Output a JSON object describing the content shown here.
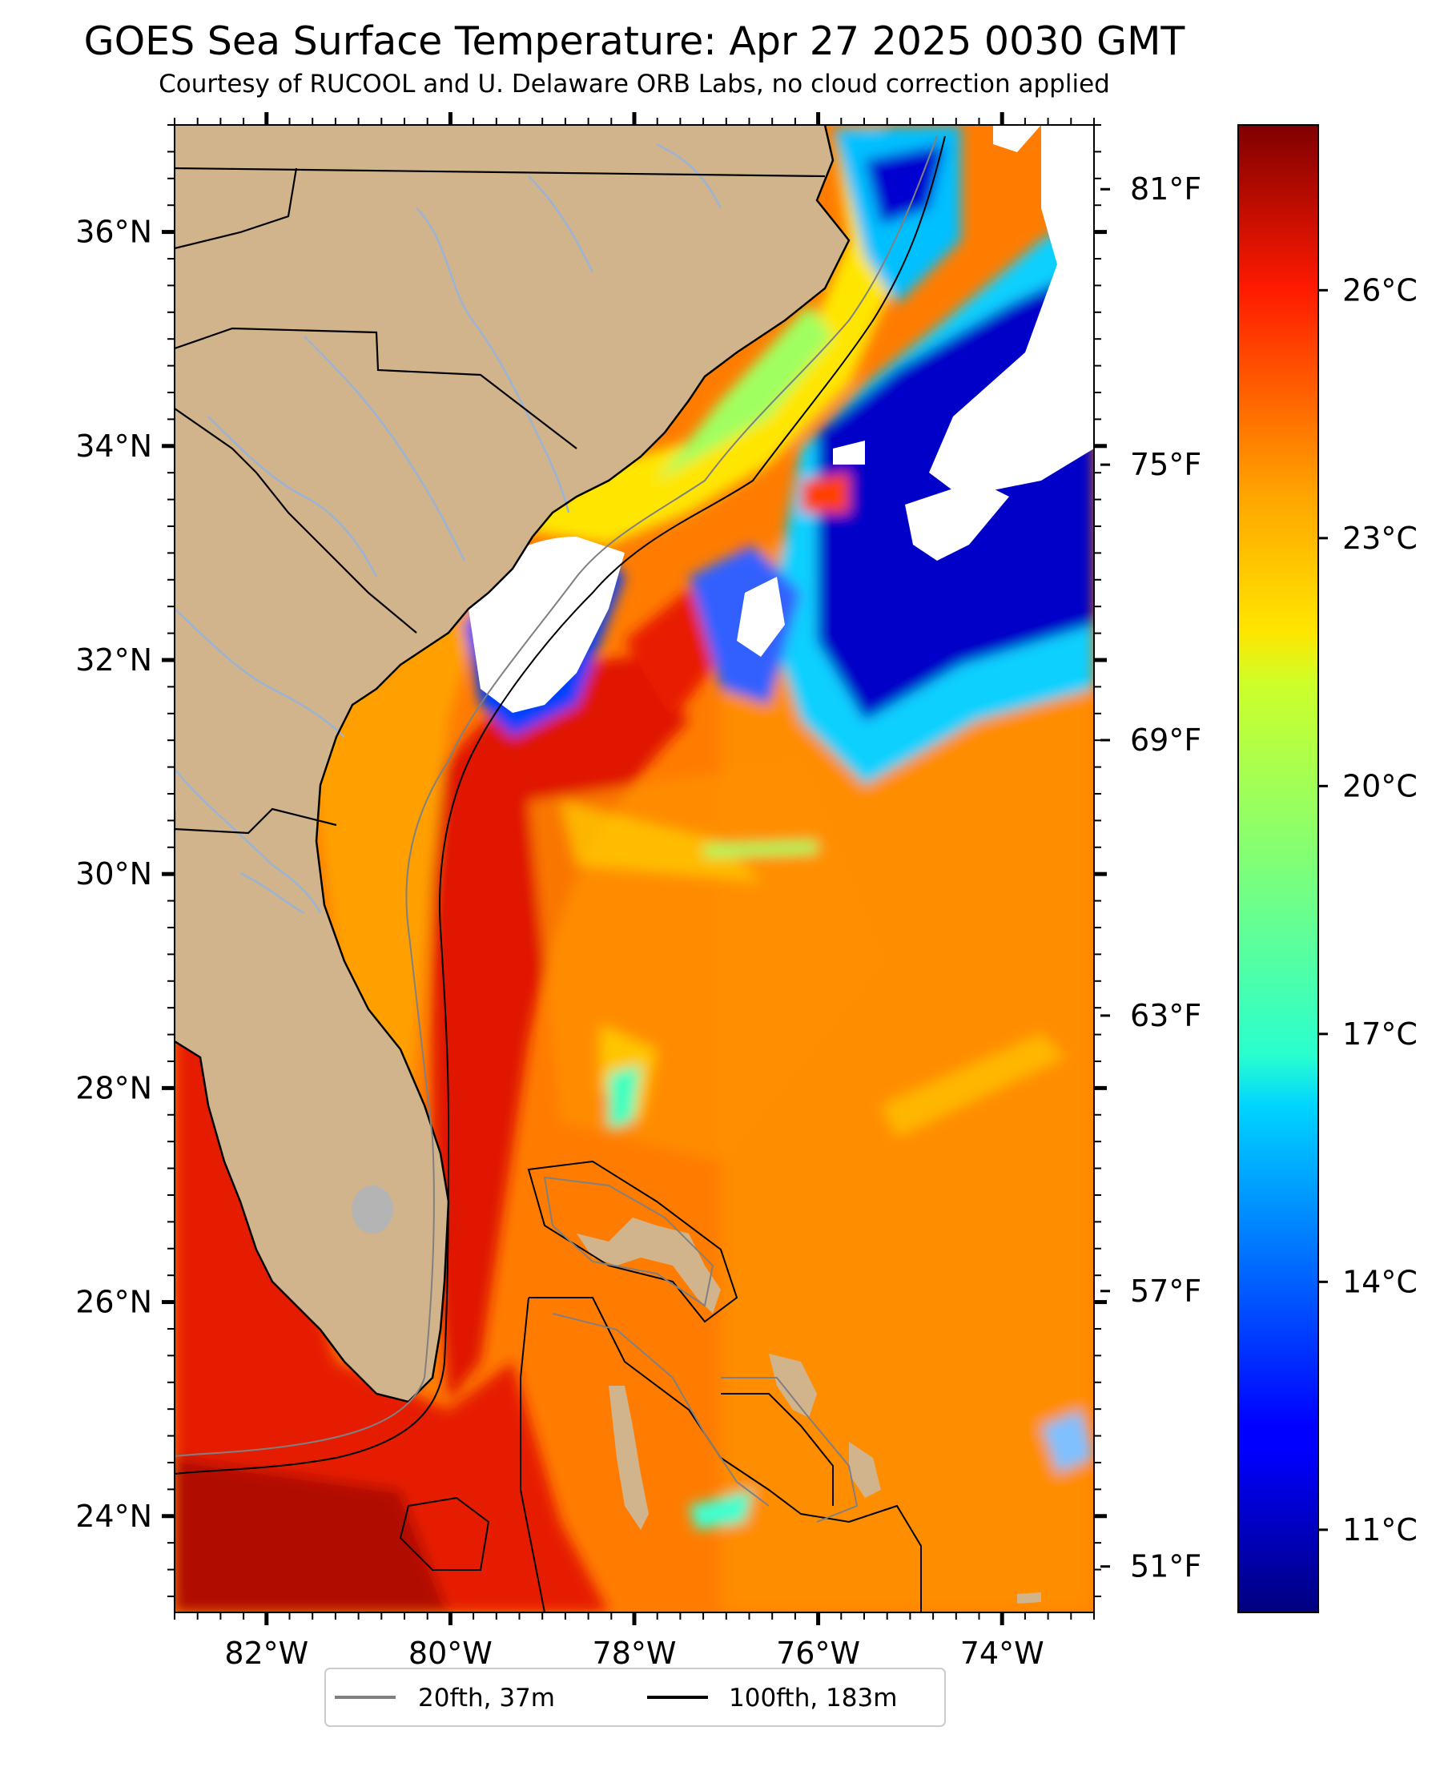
{
  "title": "GOES Sea Surface Temperature: Apr 27 2025 0030 GMT",
  "subtitle": "Courtesy of RUCOOL and U. Delaware ORB Labs, no cloud correction applied",
  "map": {
    "lon_range": [
      -83.0,
      -73.0
    ],
    "lat_range": [
      23.1,
      37.0
    ],
    "x_ticks": [
      {
        "value": -82,
        "label": "82°W"
      },
      {
        "value": -80,
        "label": "80°W"
      },
      {
        "value": -78,
        "label": "78°W"
      },
      {
        "value": -76,
        "label": "76°W"
      },
      {
        "value": -74,
        "label": "74°W"
      }
    ],
    "y_ticks": [
      {
        "value": 24,
        "label": "24°N"
      },
      {
        "value": 26,
        "label": "26°N"
      },
      {
        "value": 28,
        "label": "28°N"
      },
      {
        "value": 30,
        "label": "30°N"
      },
      {
        "value": 32,
        "label": "32°N"
      },
      {
        "value": 34,
        "label": "34°N"
      },
      {
        "value": 36,
        "label": "36°N"
      }
    ],
    "colors": {
      "land": "#d2b48c",
      "cloud": "#ffffff",
      "lake": "#b4b4b4",
      "river": "#9bb3d4"
    }
  },
  "colorbar": {
    "colormap": "jet",
    "celsius_range": [
      10.0,
      28.0
    ],
    "celsius_ticks": [
      {
        "value": 11,
        "label": "11°C"
      },
      {
        "value": 14,
        "label": "14°C"
      },
      {
        "value": 17,
        "label": "17°C"
      },
      {
        "value": 20,
        "label": "20°C"
      },
      {
        "value": 23,
        "label": "23°C"
      },
      {
        "value": 26,
        "label": "26°C"
      }
    ],
    "fahrenheit_ticks": [
      {
        "value": 51,
        "label": "51°F"
      },
      {
        "value": 57,
        "label": "57°F"
      },
      {
        "value": 63,
        "label": "63°F"
      },
      {
        "value": 69,
        "label": "69°F"
      },
      {
        "value": 75,
        "label": "75°F"
      },
      {
        "value": 81,
        "label": "81°F"
      }
    ]
  },
  "legend": {
    "placement": "bottom-center",
    "items": [
      {
        "label": "20fth, 37m",
        "color": "#808080"
      },
      {
        "label": "100fth, 183m",
        "color": "#000000"
      }
    ]
  }
}
